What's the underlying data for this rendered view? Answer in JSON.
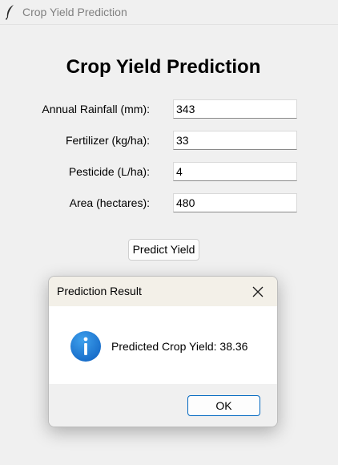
{
  "window": {
    "title": "Crop Yield Prediction",
    "icon": "feather-icon"
  },
  "form": {
    "heading": "Crop Yield Prediction",
    "fields": [
      {
        "label": "Annual Rainfall (mm):",
        "value": "343"
      },
      {
        "label": "Fertilizer (kg/ha):",
        "value": "33"
      },
      {
        "label": "Pesticide (L/ha):",
        "value": "4"
      },
      {
        "label": "Area (hectares):",
        "value": "480"
      }
    ],
    "predict_button_label": "Predict Yield"
  },
  "dialog": {
    "title": "Prediction Result",
    "message": "Predicted Crop Yield: 38.36",
    "ok_label": "OK",
    "icon": "info-icon",
    "close_icon": "close-icon"
  },
  "colors": {
    "info_icon_blue": "#1a7fd4",
    "ok_button_border": "#0067c0",
    "window_background": "#f0f0f0"
  }
}
